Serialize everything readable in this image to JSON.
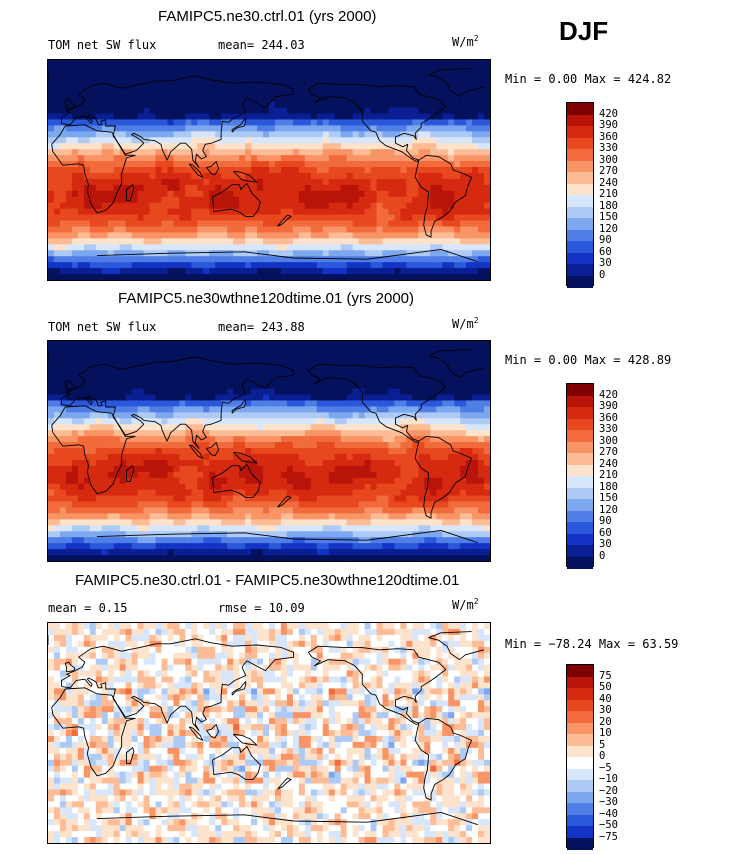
{
  "season": "DJF",
  "panels": [
    {
      "title": "FAMIPC5.ne30.ctrl.01 (yrs 2000)",
      "left_label": "TOM net SW flux",
      "right_label": "mean= 244.03",
      "units": "W/m",
      "units_sup": "2",
      "minmax": "Min =   0.00 Max = 424.82",
      "levels": [
        "420",
        "390",
        "360",
        "330",
        "300",
        "270",
        "240",
        "210",
        "180",
        "150",
        "120",
        "90",
        "60",
        "30",
        "0"
      ],
      "colors": [
        "#7f0000",
        "#b8140a",
        "#d62a10",
        "#e8481e",
        "#f26b3c",
        "#f89465",
        "#fcbc96",
        "#fde3cc",
        "#d7e6fa",
        "#adcaf5",
        "#7da7ef",
        "#4f7ee6",
        "#2a58db",
        "#1233c4",
        "#0a1f93",
        "#04115d"
      ]
    },
    {
      "title": "FAMIPC5.ne30wthne120dtime.01 (yrs 2000)",
      "left_label": "TOM net SW flux",
      "right_label": "mean= 243.88",
      "units": "W/m",
      "units_sup": "2",
      "minmax": "Min =   0.00 Max = 428.89",
      "levels": [
        "420",
        "390",
        "360",
        "330",
        "300",
        "270",
        "240",
        "210",
        "180",
        "150",
        "120",
        "90",
        "60",
        "30",
        "0"
      ],
      "colors": [
        "#7f0000",
        "#b8140a",
        "#d62a10",
        "#e8481e",
        "#f26b3c",
        "#f89465",
        "#fcbc96",
        "#fde3cc",
        "#d7e6fa",
        "#adcaf5",
        "#7da7ef",
        "#4f7ee6",
        "#2a58db",
        "#1233c4",
        "#0a1f93",
        "#04115d"
      ]
    },
    {
      "title": "FAMIPC5.ne30.ctrl.01 - FAMIPC5.ne30wthne120dtime.01",
      "left_label": "mean =   0.15",
      "right_label": "rmse =  10.09",
      "units": "W/m",
      "units_sup": "2",
      "minmax": "Min = −78.24 Max =  63.59",
      "levels": [
        "75",
        "50",
        "40",
        "30",
        "20",
        "10",
        "5",
        "0",
        "−5",
        "−10",
        "−20",
        "−30",
        "−40",
        "−50",
        "−75"
      ],
      "colors": [
        "#7f0000",
        "#b8140a",
        "#d62a10",
        "#e8481e",
        "#f26b3c",
        "#f89465",
        "#fcbc96",
        "#fde3cc",
        "#ffffff",
        "#d7e6fa",
        "#adcaf5",
        "#7da7ef",
        "#4f7ee6",
        "#2a58db",
        "#1233c4",
        "#04115d"
      ]
    }
  ]
}
